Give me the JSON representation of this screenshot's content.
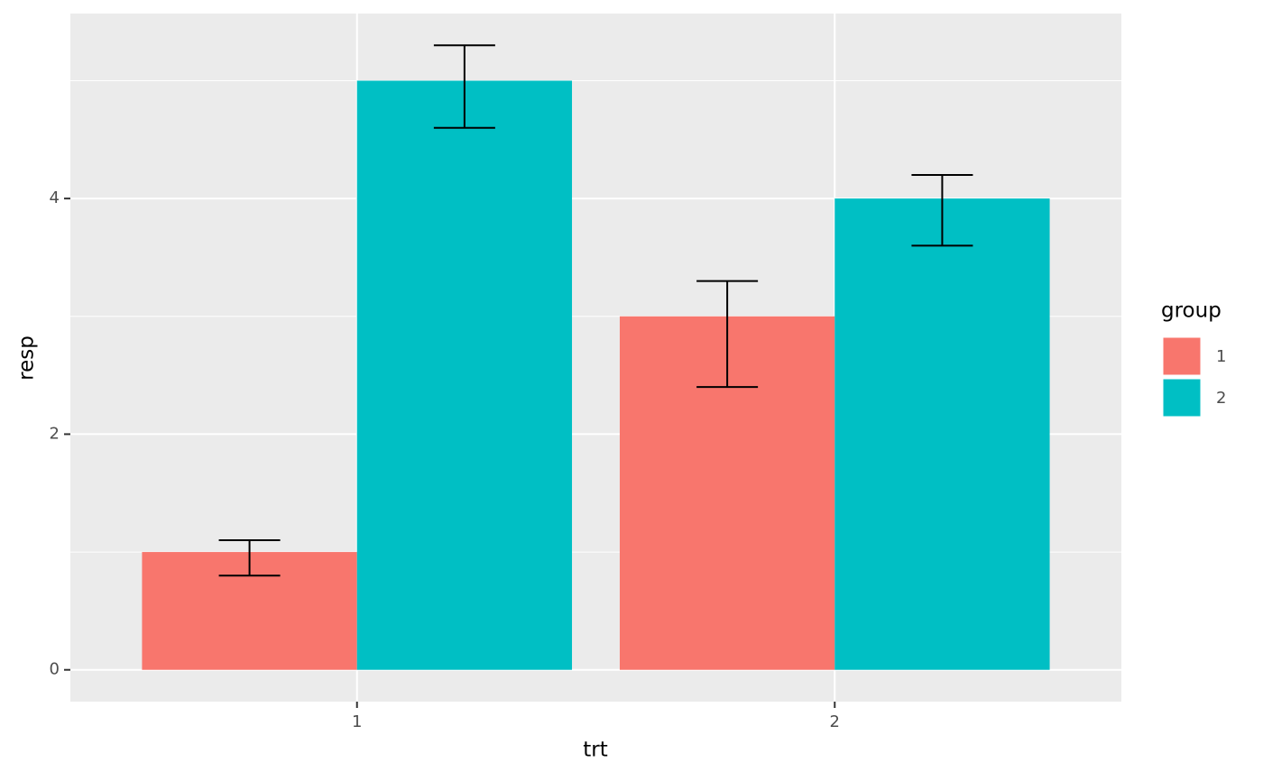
{
  "chart_data": {
    "type": "bar",
    "x_label": "trt",
    "y_label": "resp",
    "legend_title": "group",
    "categories": [
      "1",
      "2"
    ],
    "series": [
      {
        "name": "1",
        "color": "#F8766D",
        "values": [
          1,
          3
        ],
        "lower": [
          0.8,
          2.4
        ],
        "upper": [
          1.1,
          3.3
        ]
      },
      {
        "name": "2",
        "color": "#00BFC4",
        "values": [
          5,
          4
        ],
        "lower": [
          4.6,
          3.6
        ],
        "upper": [
          5.3,
          4.2
        ]
      }
    ],
    "ylim": [
      -0.27,
      5.57
    ],
    "yticks": [
      0,
      2,
      4
    ],
    "y_minor_grid": [
      1,
      3,
      5
    ],
    "grid": true,
    "legend": "right"
  }
}
